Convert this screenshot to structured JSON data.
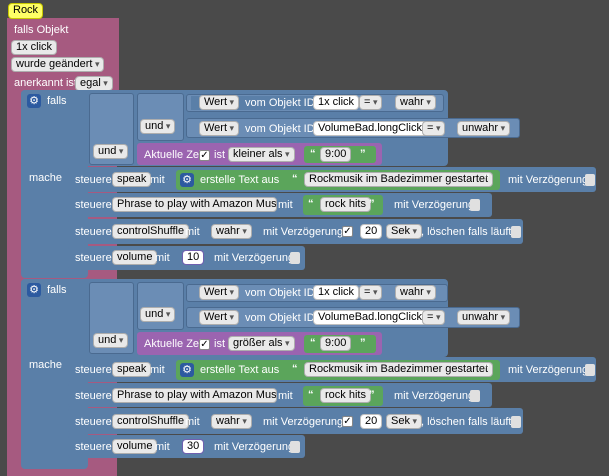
{
  "colors": {
    "background": "#4a4a4a",
    "trigger": "#a65a80",
    "if_block": "#5a7fa8",
    "logic": "#5a7fa8",
    "compare": "#5a7fa8",
    "time": "#9b64b0",
    "text_green": "#5ba55b",
    "action": "#5a7fa8"
  },
  "trigger": {
    "tag": "Rock",
    "falls_objekt": "falls Objekt",
    "object_id": "1x click",
    "changed": "wurde geändert",
    "ack_label": "anerkannt ist",
    "ack_value": "egal"
  },
  "blocks": [
    {
      "falls": "falls",
      "mache": "mache",
      "und_outer": "und",
      "und_inner": "und",
      "cond1": {
        "attr": "Wert",
        "vom": "vom Objekt ID",
        "id": "1x click",
        "op": "=",
        "val": "wahr"
      },
      "cond2": {
        "attr": "Wert",
        "vom": "vom Objekt ID",
        "id": "VolumeBad.longClick",
        "op": "=",
        "val": "unwahr"
      },
      "time": {
        "label": "Aktuelle Zeit",
        "ist": "ist",
        "cmp": "kleiner als",
        "value": "9:00"
      },
      "speak": {
        "steuere": "steuere",
        "target": "speak",
        "mit": "mit",
        "create": "erstelle Text aus",
        "text": "Rockmusik im Badezimmer gestartet",
        "delay": "mit Verzögerung"
      },
      "amazon": {
        "steuere": "steuere",
        "target": "Phrase to play with Amazon Music",
        "mit": "mit",
        "text": "rock hits",
        "delay": "mit Verzögerung"
      },
      "shuffle": {
        "steuere": "steuere",
        "target": "controlShuffle",
        "mit": "mit",
        "value": "wahr",
        "delay": "mit Verzögerung",
        "secs": "20",
        "unit": "Sek",
        "clear": ", löschen falls läuft"
      },
      "volume": {
        "steuere": "steuere",
        "target": "volume",
        "mit": "mit",
        "value": "10",
        "delay": "mit Verzögerung"
      }
    },
    {
      "falls": "falls",
      "mache": "mache",
      "und_outer": "und",
      "und_inner": "und",
      "cond1": {
        "attr": "Wert",
        "vom": "vom Objekt ID",
        "id": "1x click",
        "op": "=",
        "val": "wahr"
      },
      "cond2": {
        "attr": "Wert",
        "vom": "vom Objekt ID",
        "id": "VolumeBad.longClick",
        "op": "=",
        "val": "unwahr"
      },
      "time": {
        "label": "Aktuelle Zeit",
        "ist": "ist",
        "cmp": "größer als",
        "value": "9:00"
      },
      "speak": {
        "steuere": "steuere",
        "target": "speak",
        "mit": "mit",
        "create": "erstelle Text aus",
        "text": "Rockmusik im Badezimmer gestartet",
        "delay": "mit Verzögerung"
      },
      "amazon": {
        "steuere": "steuere",
        "target": "Phrase to play with Amazon Music",
        "mit": "mit",
        "text": "rock hits",
        "delay": "mit Verzögerung"
      },
      "shuffle": {
        "steuere": "steuere",
        "target": "controlShuffle",
        "mit": "mit",
        "value": "wahr",
        "delay": "mit Verzögerung",
        "secs": "20",
        "unit": "Sek",
        "clear": ", löschen falls läuft"
      },
      "volume": {
        "steuere": "steuere",
        "target": "volume",
        "mit": "mit",
        "value": "30",
        "delay": "mit Verzögerung"
      }
    }
  ]
}
